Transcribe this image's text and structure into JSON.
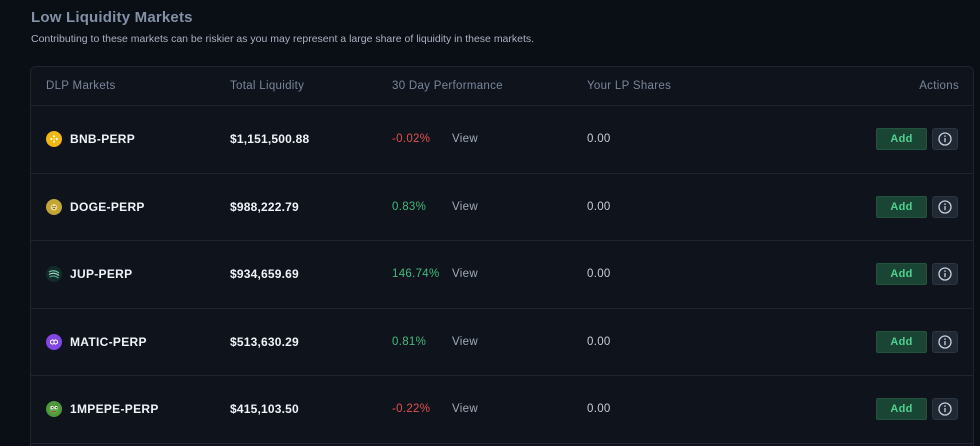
{
  "section": {
    "title": "Low Liquidity Markets",
    "subtitle": "Contributing to these markets can be riskier as you may represent a large share of liquidity in these markets."
  },
  "table": {
    "headers": {
      "market": "DLP Markets",
      "liquidity": "Total Liquidity",
      "performance": "30 Day Performance",
      "shares": "Your LP Shares",
      "actions": "Actions"
    },
    "view_label": "View",
    "add_label": "Add",
    "rows": [
      {
        "market": "BNB-PERP",
        "icon": "bnb-icon",
        "icon_color": "#f0b90b",
        "liquidity": "$1,151,500.88",
        "performance": "-0.02%",
        "trend": "neg",
        "shares": "0.00"
      },
      {
        "market": "DOGE-PERP",
        "icon": "doge-icon",
        "icon_color": "#c2a633",
        "liquidity": "$988,222.79",
        "performance": "0.83%",
        "trend": "pos",
        "shares": "0.00"
      },
      {
        "market": "JUP-PERP",
        "icon": "jup-icon",
        "icon_color": "#6cc5a8",
        "liquidity": "$934,659.69",
        "performance": "146.74%",
        "trend": "pos",
        "shares": "0.00"
      },
      {
        "market": "MATIC-PERP",
        "icon": "matic-icon",
        "icon_color": "#8247e5",
        "liquidity": "$513,630.29",
        "performance": "0.81%",
        "trend": "pos",
        "shares": "0.00"
      },
      {
        "market": "1MPEPE-PERP",
        "icon": "pepe-icon",
        "icon_color": "#4c9a3c",
        "liquidity": "$415,103.50",
        "performance": "-0.22%",
        "trend": "neg",
        "shares": "0.00"
      }
    ]
  },
  "colors": {
    "background": "#0a0e15",
    "panel": "#0e131c",
    "negative": "#e0514e",
    "positive": "#3fbd7a",
    "add_button_bg": "#1a4433",
    "add_button_text": "#4fd291"
  }
}
